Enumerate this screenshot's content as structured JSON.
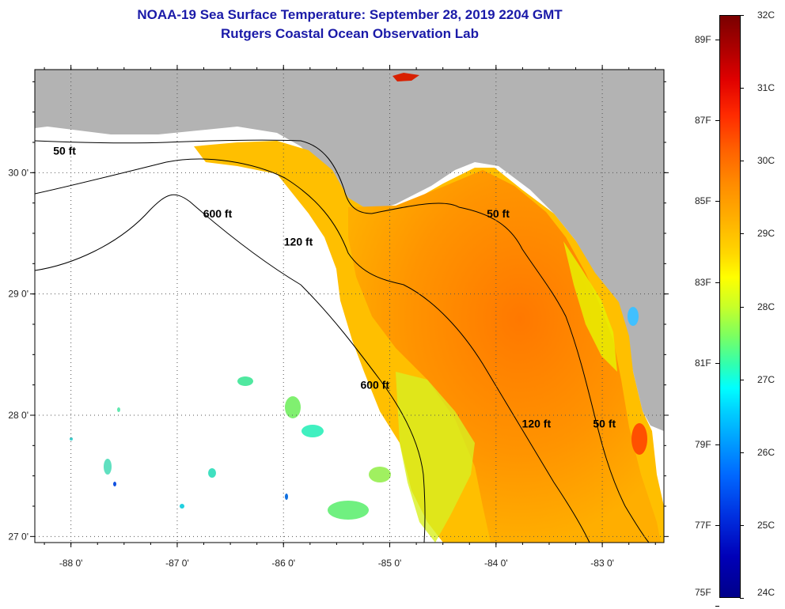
{
  "header": {
    "title_line1": "NOAA-19 Sea Surface Temperature:  September 28, 2019 2204 GMT",
    "title_line2": "Rutgers Coastal Ocean Observation Lab"
  },
  "map": {
    "lon_range": [
      -88.34,
      -82.42
    ],
    "lat_range": [
      26.95,
      30.85
    ],
    "lon_ticks": [
      {
        "value": -88,
        "label": "-88 0'"
      },
      {
        "value": -87,
        "label": "-87 0'"
      },
      {
        "value": -86,
        "label": "-86 0'"
      },
      {
        "value": -85,
        "label": "-85 0'"
      },
      {
        "value": -84,
        "label": "-84 0'"
      },
      {
        "value": -83,
        "label": "-83 0'"
      }
    ],
    "lat_ticks": [
      {
        "value": 30,
        "label": "30 0'"
      },
      {
        "value": 29,
        "label": "29 0'"
      },
      {
        "value": 28,
        "label": "28 0'"
      },
      {
        "value": 27,
        "label": "27 0'"
      }
    ],
    "contour_labels": [
      {
        "text": "50 ft",
        "lon": -88.06,
        "lat": 30.15
      },
      {
        "text": "600 ft",
        "lon": -86.62,
        "lat": 29.63
      },
      {
        "text": "120 ft",
        "lon": -85.86,
        "lat": 29.4
      },
      {
        "text": "50 ft",
        "lon": -83.98,
        "lat": 29.63
      },
      {
        "text": "600 ft",
        "lon": -85.14,
        "lat": 28.22
      },
      {
        "text": "120 ft",
        "lon": -83.62,
        "lat": 27.9
      },
      {
        "text": "50 ft",
        "lon": -82.98,
        "lat": 27.9
      }
    ],
    "colors": {
      "land": "#b3b3b3",
      "no_data": "#ffffff",
      "contour": "#000000"
    }
  },
  "colorbar": {
    "celsius_labels": [
      "32C",
      "31C",
      "30C",
      "29C",
      "28C",
      "27C",
      "26C",
      "25C",
      "24C"
    ],
    "fahrenheit_labels": [
      "89F",
      "87F",
      "85F",
      "83F",
      "81F",
      "79F",
      "77F",
      "75F"
    ],
    "range_c": [
      24,
      32
    ],
    "fahrenheit_values": [
      89,
      87,
      85,
      83,
      81,
      79,
      77,
      75
    ]
  }
}
